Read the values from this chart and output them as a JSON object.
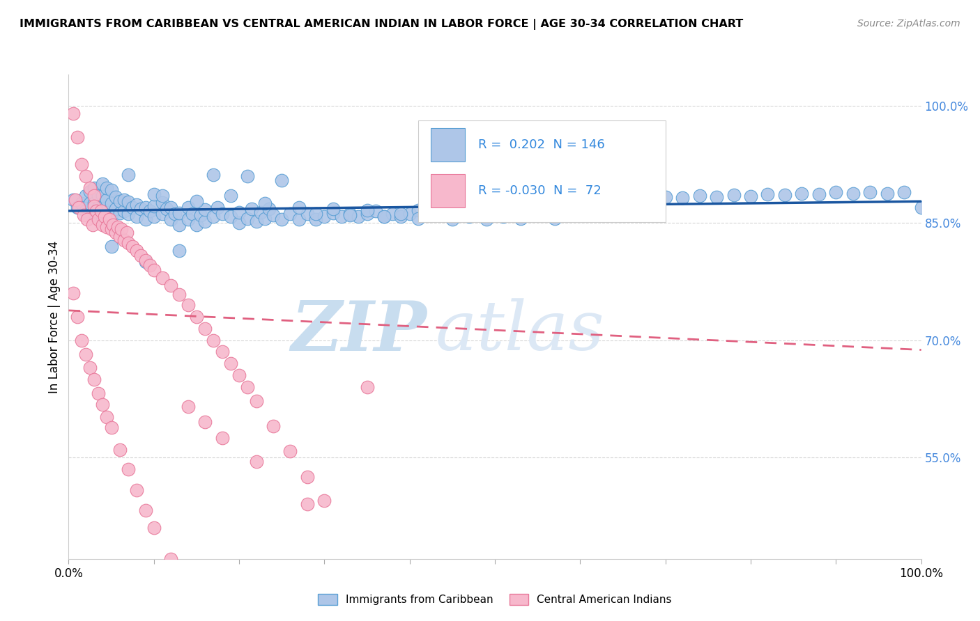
{
  "title": "IMMIGRANTS FROM CARIBBEAN VS CENTRAL AMERICAN INDIAN IN LABOR FORCE | AGE 30-34 CORRELATION CHART",
  "source": "Source: ZipAtlas.com",
  "ylabel": "In Labor Force | Age 30-34",
  "xlim": [
    0.0,
    1.0
  ],
  "ylim": [
    0.42,
    1.04
  ],
  "yticks": [
    0.55,
    0.7,
    0.85,
    1.0
  ],
  "ytick_labels": [
    "55.0%",
    "70.0%",
    "85.0%",
    "100.0%"
  ],
  "xtick_vals": [
    0.0,
    0.1,
    0.2,
    0.3,
    0.4,
    0.5,
    0.6,
    0.7,
    0.8,
    0.9,
    1.0
  ],
  "xtick_labels_show": [
    "0.0%",
    "",
    "",
    "",
    "",
    "",
    "",
    "",
    "",
    "",
    "100.0%"
  ],
  "blue_R": 0.202,
  "blue_N": 146,
  "pink_R": -0.03,
  "pink_N": 72,
  "blue_color": "#aec6e8",
  "blue_edge": "#5a9fd4",
  "pink_color": "#f7b8cc",
  "pink_edge": "#e8789a",
  "blue_line_color": "#1a56a0",
  "pink_line_color": "#e06080",
  "watermark_zip": "ZIP",
  "watermark_atlas": "atlas",
  "watermark_color": "#d0e4f0",
  "legend_label_blue": "Immigrants from Caribbean",
  "legend_label_pink": "Central American Indians",
  "blue_scatter_x": [
    0.005,
    0.01,
    0.015,
    0.02,
    0.02,
    0.025,
    0.025,
    0.03,
    0.03,
    0.03,
    0.035,
    0.035,
    0.04,
    0.04,
    0.04,
    0.04,
    0.045,
    0.045,
    0.045,
    0.05,
    0.05,
    0.05,
    0.055,
    0.055,
    0.06,
    0.06,
    0.065,
    0.065,
    0.07,
    0.07,
    0.075,
    0.08,
    0.08,
    0.085,
    0.09,
    0.09,
    0.095,
    0.1,
    0.1,
    0.1,
    0.11,
    0.11,
    0.115,
    0.12,
    0.12,
    0.125,
    0.13,
    0.13,
    0.14,
    0.14,
    0.145,
    0.15,
    0.155,
    0.16,
    0.16,
    0.17,
    0.175,
    0.18,
    0.19,
    0.2,
    0.2,
    0.21,
    0.215,
    0.22,
    0.225,
    0.23,
    0.235,
    0.24,
    0.25,
    0.26,
    0.27,
    0.28,
    0.29,
    0.3,
    0.31,
    0.32,
    0.33,
    0.34,
    0.35,
    0.36,
    0.37,
    0.38,
    0.39,
    0.4,
    0.41,
    0.42,
    0.43,
    0.44,
    0.45,
    0.46,
    0.47,
    0.48,
    0.5,
    0.52,
    0.54,
    0.56,
    0.58,
    0.6,
    0.62,
    0.64,
    0.66,
    0.68,
    0.7,
    0.72,
    0.74,
    0.76,
    0.78,
    0.8,
    0.82,
    0.84,
    0.86,
    0.88,
    0.9,
    0.92,
    0.94,
    0.96,
    0.98,
    1.0,
    0.05,
    0.07,
    0.09,
    0.11,
    0.13,
    0.15,
    0.17,
    0.19,
    0.21,
    0.23,
    0.25,
    0.27,
    0.29,
    0.31,
    0.33,
    0.35,
    0.37,
    0.39,
    0.41,
    0.43,
    0.45,
    0.47,
    0.49,
    0.51,
    0.53,
    0.55,
    0.57,
    0.59
  ],
  "blue_scatter_y": [
    0.88,
    0.87,
    0.875,
    0.865,
    0.885,
    0.875,
    0.89,
    0.86,
    0.875,
    0.895,
    0.87,
    0.885,
    0.855,
    0.87,
    0.885,
    0.9,
    0.865,
    0.88,
    0.895,
    0.86,
    0.875,
    0.892,
    0.868,
    0.883,
    0.863,
    0.878,
    0.865,
    0.88,
    0.862,
    0.877,
    0.87,
    0.858,
    0.873,
    0.868,
    0.855,
    0.87,
    0.865,
    0.858,
    0.872,
    0.887,
    0.862,
    0.876,
    0.868,
    0.855,
    0.87,
    0.862,
    0.848,
    0.863,
    0.855,
    0.87,
    0.862,
    0.848,
    0.86,
    0.852,
    0.867,
    0.858,
    0.87,
    0.862,
    0.858,
    0.85,
    0.864,
    0.856,
    0.868,
    0.852,
    0.864,
    0.856,
    0.868,
    0.86,
    0.855,
    0.862,
    0.855,
    0.862,
    0.855,
    0.858,
    0.863,
    0.858,
    0.862,
    0.858,
    0.862,
    0.865,
    0.858,
    0.862,
    0.858,
    0.862,
    0.866,
    0.862,
    0.866,
    0.87,
    0.866,
    0.87,
    0.866,
    0.87,
    0.87,
    0.875,
    0.872,
    0.875,
    0.878,
    0.875,
    0.88,
    0.878,
    0.882,
    0.88,
    0.883,
    0.882,
    0.885,
    0.883,
    0.886,
    0.884,
    0.887,
    0.886,
    0.888,
    0.887,
    0.889,
    0.888,
    0.889,
    0.888,
    0.889,
    0.87,
    0.82,
    0.912,
    0.8,
    0.885,
    0.815,
    0.878,
    0.912,
    0.885,
    0.91,
    0.875,
    0.905,
    0.87,
    0.862,
    0.868,
    0.86,
    0.866,
    0.858,
    0.862,
    0.856,
    0.86,
    0.855,
    0.858,
    0.855,
    0.858,
    0.856,
    0.86,
    0.856,
    0.86
  ],
  "pink_scatter_x": [
    0.005,
    0.008,
    0.01,
    0.012,
    0.015,
    0.018,
    0.02,
    0.022,
    0.025,
    0.028,
    0.03,
    0.03,
    0.032,
    0.035,
    0.038,
    0.04,
    0.042,
    0.045,
    0.048,
    0.05,
    0.052,
    0.055,
    0.058,
    0.06,
    0.062,
    0.065,
    0.068,
    0.07,
    0.075,
    0.08,
    0.085,
    0.09,
    0.095,
    0.1,
    0.11,
    0.12,
    0.13,
    0.14,
    0.15,
    0.16,
    0.17,
    0.18,
    0.19,
    0.2,
    0.21,
    0.22,
    0.24,
    0.26,
    0.28,
    0.3,
    0.005,
    0.01,
    0.015,
    0.02,
    0.025,
    0.03,
    0.035,
    0.04,
    0.045,
    0.05,
    0.06,
    0.07,
    0.08,
    0.09,
    0.1,
    0.12,
    0.14,
    0.16,
    0.18,
    0.22,
    0.28,
    0.35
  ],
  "pink_scatter_y": [
    0.99,
    0.88,
    0.96,
    0.87,
    0.925,
    0.86,
    0.91,
    0.855,
    0.895,
    0.848,
    0.885,
    0.872,
    0.865,
    0.855,
    0.865,
    0.848,
    0.858,
    0.845,
    0.855,
    0.842,
    0.848,
    0.838,
    0.845,
    0.832,
    0.842,
    0.828,
    0.838,
    0.824,
    0.82,
    0.815,
    0.808,
    0.802,
    0.796,
    0.79,
    0.78,
    0.77,
    0.758,
    0.745,
    0.73,
    0.715,
    0.7,
    0.685,
    0.67,
    0.655,
    0.64,
    0.622,
    0.59,
    0.558,
    0.525,
    0.495,
    0.76,
    0.73,
    0.7,
    0.682,
    0.665,
    0.65,
    0.632,
    0.618,
    0.602,
    0.588,
    0.56,
    0.535,
    0.508,
    0.482,
    0.46,
    0.42,
    0.615,
    0.595,
    0.575,
    0.545,
    0.49,
    0.64
  ]
}
